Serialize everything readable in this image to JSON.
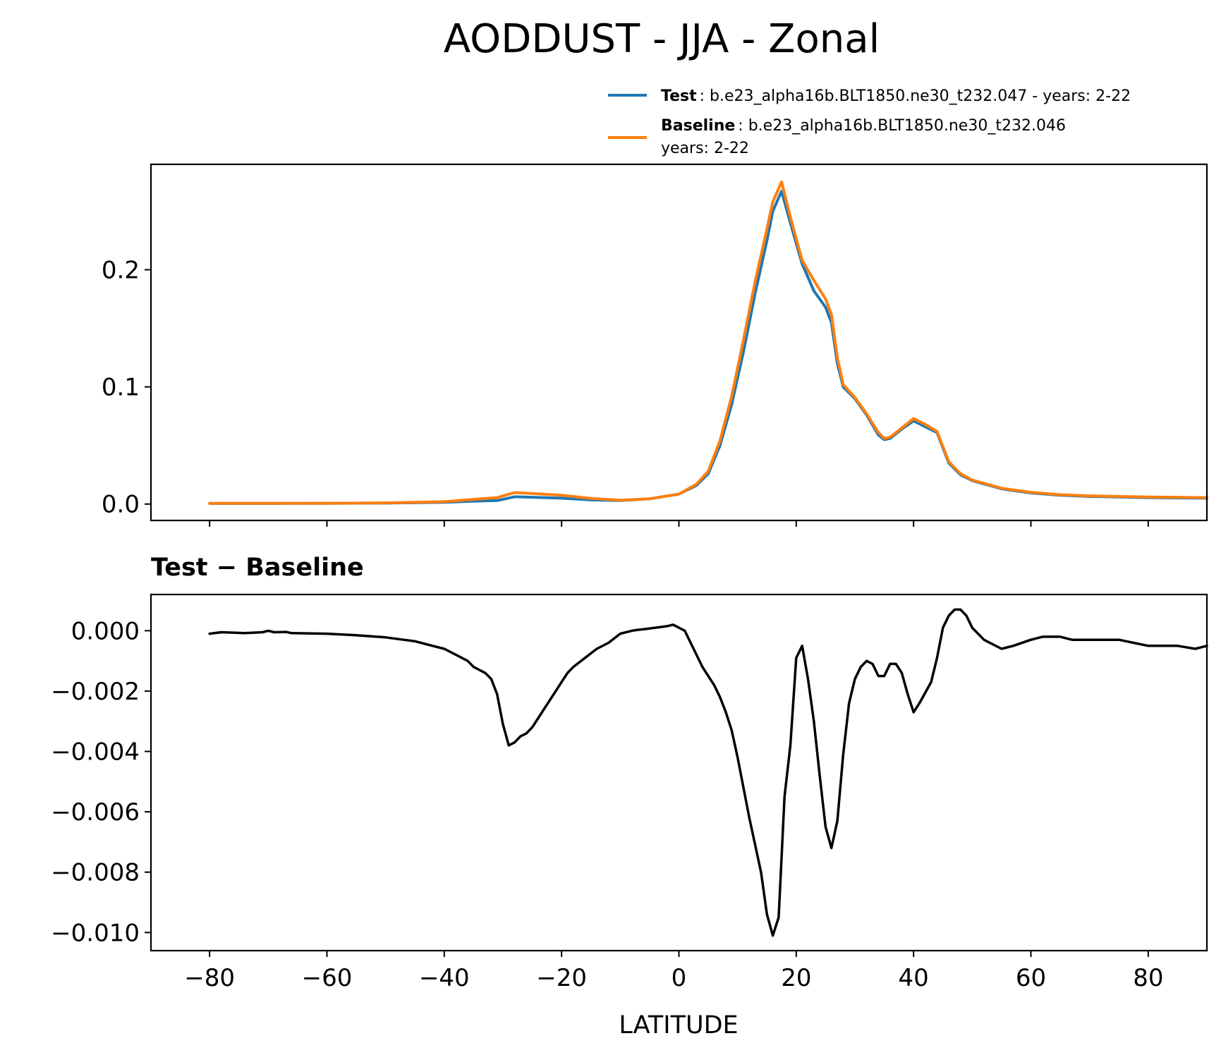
{
  "chart_data": [
    {
      "type": "line",
      "title": "AODDUST - JJA - Zonal",
      "xlim": [
        -90,
        90
      ],
      "ylim": [
        -0.014,
        0.29
      ],
      "yticks": [
        0.0,
        0.1,
        0.2
      ],
      "ytick_labels": [
        "0.0",
        "0.1",
        "0.2"
      ],
      "xticks": [
        -80,
        -60,
        -40,
        -20,
        0,
        20,
        40,
        60,
        80
      ],
      "grid": false,
      "legend_position": "above top-right",
      "legend": [
        {
          "bold": "Test",
          "text": ": b.e23_alpha16b.BLT1850.ne30_t232.047 - years: 2-22",
          "text2": "",
          "color": "#1f77b4"
        },
        {
          "bold": "Baseline",
          "text": ": b.e23_alpha16b.BLT1850.ne30_t232.046",
          "text2": "years: 2-22",
          "color": "#ff7f0e"
        }
      ],
      "series": [
        {
          "name": "Test",
          "color": "#1f77b4",
          "x": [
            -80,
            -70,
            -60,
            -50,
            -40,
            -35,
            -31,
            -28,
            -25,
            -20,
            -15,
            -10,
            -5,
            0,
            3,
            5,
            7,
            9,
            11,
            13,
            15,
            16,
            17.5,
            19,
            21,
            23,
            25,
            26,
            27,
            28,
            30,
            32,
            34,
            35,
            36,
            38,
            40,
            42,
            44,
            46,
            48,
            50,
            55,
            60,
            65,
            70,
            80,
            90
          ],
          "y": [
            0.0005,
            0.0005,
            0.0006,
            0.0008,
            0.0015,
            0.0025,
            0.003,
            0.0062,
            0.0058,
            0.005,
            0.0035,
            0.003,
            0.0045,
            0.0085,
            0.016,
            0.026,
            0.05,
            0.085,
            0.13,
            0.18,
            0.225,
            0.25,
            0.267,
            0.24,
            0.205,
            0.182,
            0.168,
            0.155,
            0.12,
            0.1,
            0.09,
            0.076,
            0.059,
            0.055,
            0.056,
            0.064,
            0.071,
            0.066,
            0.061,
            0.035,
            0.025,
            0.02,
            0.013,
            0.0095,
            0.0075,
            0.0065,
            0.0055,
            0.005
          ]
        },
        {
          "name": "Baseline",
          "color": "#ff7f0e",
          "x": [
            -80,
            -70,
            -60,
            -50,
            -40,
            -35,
            -31,
            -28,
            -25,
            -20,
            -15,
            -10,
            -5,
            0,
            3,
            5,
            7,
            9,
            11,
            13,
            15,
            16,
            17.5,
            19,
            21,
            23,
            25,
            26,
            27,
            28,
            30,
            32,
            34,
            35,
            36,
            38,
            40,
            42,
            44,
            46,
            48,
            50,
            55,
            60,
            65,
            70,
            80,
            90
          ],
          "y": [
            0.0006,
            0.0006,
            0.0007,
            0.001,
            0.002,
            0.004,
            0.0055,
            0.0098,
            0.009,
            0.0075,
            0.0048,
            0.0033,
            0.0045,
            0.0085,
            0.017,
            0.028,
            0.054,
            0.092,
            0.14,
            0.19,
            0.235,
            0.258,
            0.275,
            0.245,
            0.208,
            0.191,
            0.175,
            0.162,
            0.125,
            0.102,
            0.091,
            0.077,
            0.061,
            0.056,
            0.057,
            0.065,
            0.073,
            0.068,
            0.062,
            0.036,
            0.026,
            0.0205,
            0.0135,
            0.01,
            0.008,
            0.007,
            0.006,
            0.0055
          ]
        }
      ]
    },
    {
      "type": "line",
      "title": "Test − Baseline",
      "xlabel": "LATITUDE",
      "xlim": [
        -90,
        90
      ],
      "ylim": [
        -0.0106,
        0.0012
      ],
      "xticks": [
        -80,
        -60,
        -40,
        -20,
        0,
        20,
        40,
        60,
        80
      ],
      "xtick_labels": [
        "−80",
        "−60",
        "−40",
        "−20",
        "0",
        "20",
        "40",
        "60",
        "80"
      ],
      "yticks": [
        0.0,
        -0.002,
        -0.004,
        -0.006,
        -0.008,
        -0.01
      ],
      "ytick_labels": [
        "0.000",
        "−0.002",
        "−0.004",
        "−0.006",
        "−0.008",
        "−0.010"
      ],
      "grid": false,
      "series": [
        {
          "color": "#000000",
          "x": [
            -80,
            -78,
            -74,
            -71,
            -70,
            -69,
            -67,
            -66,
            -60,
            -55,
            -50,
            -45,
            -42,
            -40,
            -38,
            -36,
            -35,
            -34,
            -33,
            -32,
            -31,
            -30,
            -29,
            -28,
            -27,
            -26,
            -25,
            -24,
            -23,
            -21,
            -20,
            -19,
            -18,
            -16,
            -14,
            -12,
            -10,
            -8,
            -7,
            -6,
            -4,
            -2,
            -1,
            0,
            1,
            2,
            3,
            4,
            5,
            6,
            7,
            8,
            9,
            10,
            11,
            12,
            13,
            14,
            15,
            16,
            17,
            18,
            19,
            20,
            21,
            22,
            23,
            24,
            25,
            26,
            27,
            28,
            29,
            30,
            31,
            32,
            33,
            34,
            35,
            36,
            37,
            38,
            39,
            40,
            41,
            43,
            44,
            45,
            46,
            47,
            48,
            49,
            50,
            52,
            53,
            55,
            57,
            60,
            62,
            65,
            67,
            70,
            75,
            80,
            85,
            88,
            90
          ],
          "y": [
            -0.0001,
            -5e-05,
            -8e-05,
            -5e-05,
            0.0,
            -5e-05,
            -4e-05,
            -8e-05,
            -0.0001,
            -0.00015,
            -0.00022,
            -0.00035,
            -0.0005,
            -0.0006,
            -0.0008,
            -0.001,
            -0.0012,
            -0.0013,
            -0.0014,
            -0.0016,
            -0.0021,
            -0.0031,
            -0.0038,
            -0.0037,
            -0.0035,
            -0.0034,
            -0.0032,
            -0.0029,
            -0.0026,
            -0.002,
            -0.0017,
            -0.0014,
            -0.0012,
            -0.0009,
            -0.0006,
            -0.0004,
            -0.0001,
            0.0,
            3e-05,
            5e-05,
            0.0001,
            0.00015,
            0.0002,
            0.0001,
            0.0,
            -0.0004,
            -0.0008,
            -0.0012,
            -0.0015,
            -0.0018,
            -0.0022,
            -0.0027,
            -0.0033,
            -0.0042,
            -0.0052,
            -0.0062,
            -0.0071,
            -0.008,
            -0.0094,
            -0.0101,
            -0.0095,
            -0.0055,
            -0.0038,
            -0.0009,
            -0.0005,
            -0.0016,
            -0.003,
            -0.0048,
            -0.0065,
            -0.0072,
            -0.0063,
            -0.0041,
            -0.0024,
            -0.0016,
            -0.0012,
            -0.001,
            -0.0011,
            -0.0015,
            -0.0015,
            -0.0011,
            -0.0011,
            -0.0014,
            -0.0021,
            -0.0027,
            -0.0024,
            -0.0017,
            -0.0009,
            0.0001,
            0.0005,
            0.0007,
            0.0007,
            0.0005,
            0.0001,
            -0.0003,
            -0.0004,
            -0.0006,
            -0.0005,
            -0.0003,
            -0.0002,
            -0.0002,
            -0.0003,
            -0.0003,
            -0.0003,
            -0.0005,
            -0.0005,
            -0.0006,
            -0.0005
          ]
        }
      ]
    }
  ]
}
